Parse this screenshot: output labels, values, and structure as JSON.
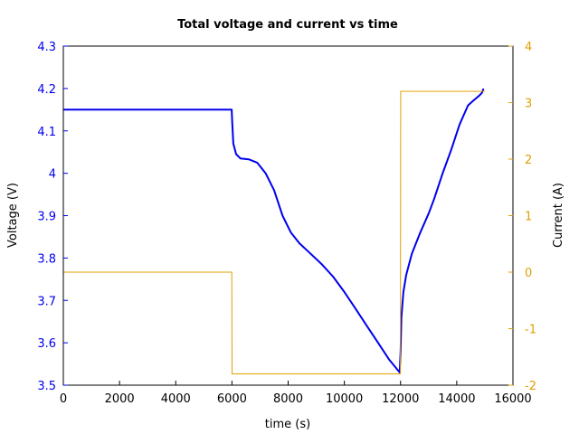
{
  "chart_data": {
    "type": "line",
    "title": "Total voltage and current vs time",
    "xlabel": "time (s)",
    "ylabel_left": "Voltage (V)",
    "ylabel_right": "Current (A)",
    "xlim": [
      0,
      16000
    ],
    "ylim_left": [
      3.5,
      4.3
    ],
    "ylim_right": [
      -2,
      4
    ],
    "x_ticks": [
      0,
      2000,
      4000,
      6000,
      8000,
      10000,
      12000,
      14000,
      16000
    ],
    "x_tick_labels": [
      "0",
      "2000",
      "4000",
      "6000",
      "8000",
      "10000",
      "12000",
      "14000",
      "16000"
    ],
    "y_left_ticks": [
      3.5,
      3.6,
      3.7,
      3.8,
      3.9,
      4.0,
      4.1,
      4.2,
      4.3
    ],
    "y_left_tick_labels": [
      "3.5",
      "3.6",
      "3.7",
      "3.8",
      "3.9",
      "4",
      "4.1",
      "4.2",
      "4.3"
    ],
    "y_right_ticks": [
      -2,
      -1,
      0,
      1,
      2,
      3,
      4
    ],
    "y_right_tick_labels": [
      "-2",
      "-1",
      "0",
      "1",
      "2",
      "3",
      "4"
    ],
    "grid": false,
    "colors": {
      "voltage": "#0000ee",
      "current": "#e0a000",
      "left_axis": "#0000ee",
      "right_axis": "#e0a000",
      "title": "#000000"
    },
    "series": [
      {
        "axis": "left",
        "x": [
          0,
          2000,
          4000,
          5990,
          6010,
          6050,
          6150,
          6300,
          6600,
          6900,
          7200,
          7500,
          7800,
          8100,
          8400,
          8800,
          9200,
          9600,
          10000,
          10400,
          10800,
          11200,
          11600,
          11970,
          12000,
          12030,
          12100,
          12200,
          12400,
          12700,
          13000,
          13200,
          13500,
          13800,
          14100,
          14400,
          14600,
          14800,
          14900,
          14950
        ],
        "y": [
          4.15,
          4.15,
          4.15,
          4.15,
          4.12,
          4.07,
          4.045,
          4.035,
          4.033,
          4.025,
          4.0,
          3.96,
          3.9,
          3.86,
          3.835,
          3.81,
          3.785,
          3.756,
          3.72,
          3.68,
          3.64,
          3.6,
          3.56,
          3.53,
          3.58,
          3.66,
          3.72,
          3.76,
          3.81,
          3.86,
          3.905,
          3.94,
          4.0,
          4.055,
          4.115,
          4.16,
          4.172,
          4.183,
          4.19,
          4.2
        ]
      },
      {
        "axis": "right",
        "x": [
          0,
          5995,
          6005,
          11995,
          12005,
          15000
        ],
        "y": [
          0,
          0,
          -1.8,
          -1.8,
          3.2,
          3.2
        ]
      }
    ]
  }
}
